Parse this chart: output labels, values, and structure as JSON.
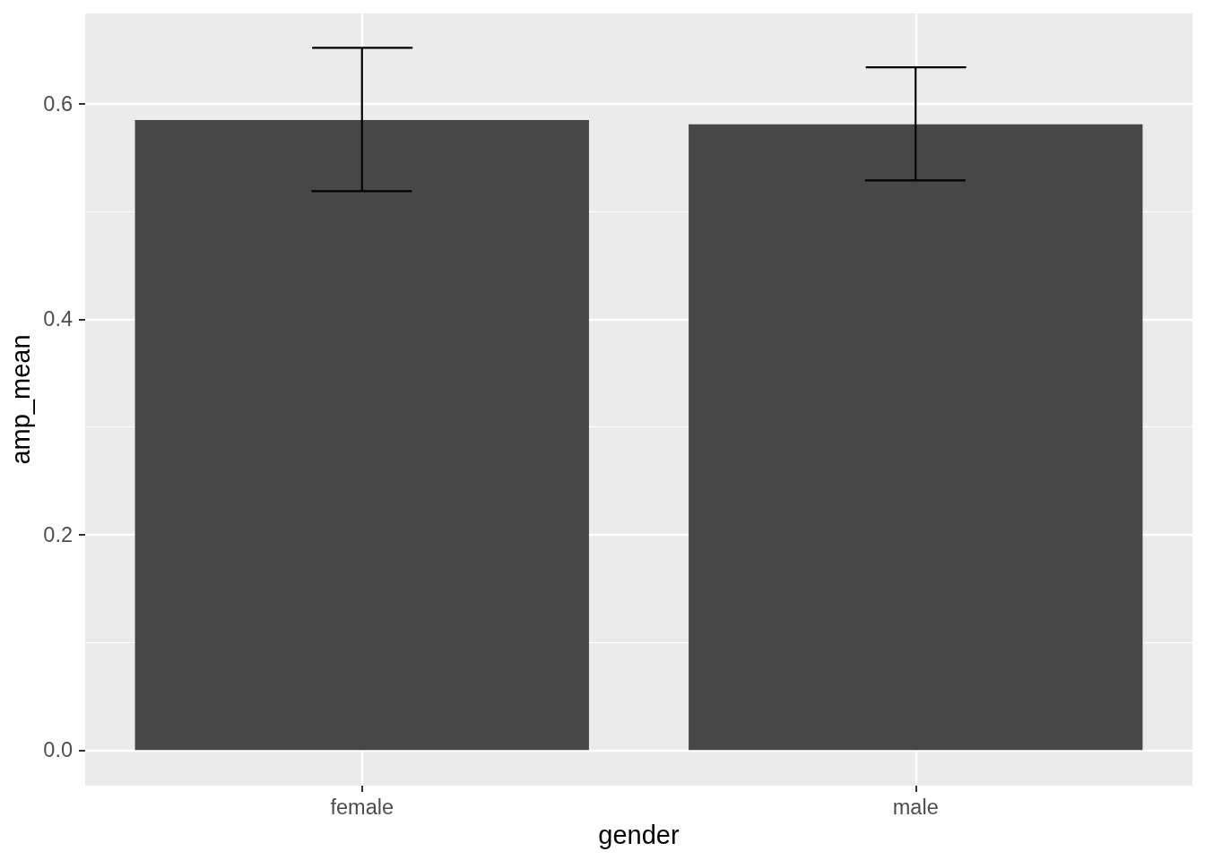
{
  "chart_data": {
    "type": "bar",
    "xlabel": "gender",
    "ylabel": "amp_mean",
    "categories": [
      "female",
      "male"
    ],
    "values": [
      0.585,
      0.581
    ],
    "color": "#474747",
    "errors": [
      [
        0.519,
        0.652
      ],
      [
        0.529,
        0.634
      ]
    ],
    "ylim": [
      -0.033,
      0.684
    ],
    "yticks": [
      {
        "value": 0,
        "label": "0.0"
      },
      {
        "value": 0.1,
        "label": null
      },
      0.2,
      {
        "value": 0.3,
        "label": null
      },
      0.4,
      {
        "value": 0.5,
        "label": null
      },
      0.6
    ],
    "grid": true
  }
}
